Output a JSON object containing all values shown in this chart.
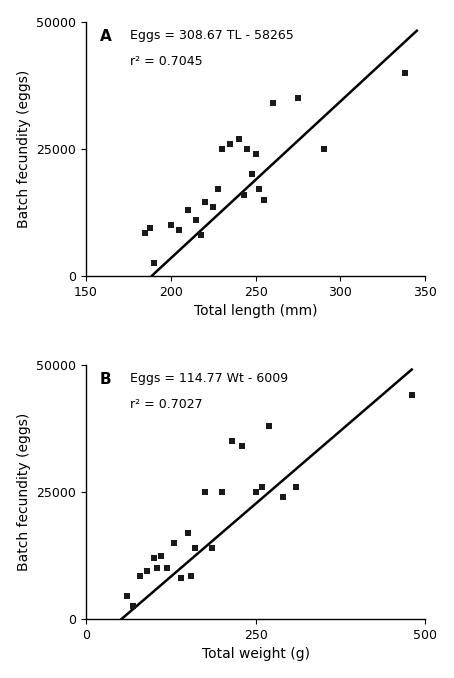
{
  "panel_A": {
    "label": "A",
    "equation": "Eggs = 308.67 TL - 58265",
    "r2": "r² = 0.7045",
    "slope": 308.67,
    "intercept": -58265,
    "x_data": [
      185,
      188,
      190,
      200,
      205,
      210,
      215,
      218,
      220,
      225,
      228,
      230,
      235,
      240,
      243,
      245,
      248,
      250,
      252,
      255,
      260,
      275,
      290,
      338
    ],
    "y_data": [
      8500,
      9500,
      2500,
      10000,
      9000,
      13000,
      11000,
      8000,
      14500,
      13500,
      17000,
      25000,
      26000,
      27000,
      16000,
      25000,
      20000,
      24000,
      17000,
      15000,
      34000,
      35000,
      25000,
      40000
    ],
    "line_xmin": 189,
    "line_xmax": 345,
    "xlabel": "Total length (mm)",
    "ylabel": "Batch fecundity (eggs)",
    "xlim": [
      150,
      350
    ],
    "ylim": [
      0,
      50000
    ],
    "xticks": [
      150,
      200,
      250,
      300,
      350
    ],
    "yticks": [
      0,
      25000,
      50000
    ]
  },
  "panel_B": {
    "label": "B",
    "equation": "Eggs = 114.77 Wt - 6009",
    "r2": "r² = 0.7027",
    "slope": 114.77,
    "intercept": -6009,
    "x_data": [
      60,
      70,
      80,
      90,
      100,
      105,
      110,
      120,
      130,
      140,
      150,
      155,
      160,
      175,
      185,
      200,
      215,
      230,
      250,
      260,
      270,
      290,
      310,
      480
    ],
    "y_data": [
      4500,
      2500,
      8500,
      9500,
      12000,
      10000,
      12500,
      10000,
      15000,
      8000,
      17000,
      8500,
      14000,
      25000,
      14000,
      25000,
      35000,
      34000,
      25000,
      26000,
      38000,
      24000,
      26000,
      44000
    ],
    "line_xmin": 52,
    "line_xmax": 480,
    "xlabel": "Total weight (g)",
    "ylabel": "Batch fecundity (eggs)",
    "xlim": [
      0,
      500
    ],
    "ylim": [
      0,
      50000
    ],
    "xticks": [
      0,
      250,
      500
    ],
    "yticks": [
      0,
      25000,
      50000
    ]
  },
  "marker_color": "#1a1a1a",
  "line_color": "#000000",
  "marker_size": 16,
  "line_width": 1.8,
  "annotation_fontsize": 9,
  "label_fontsize": 10,
  "tick_fontsize": 9,
  "font_family": "DejaVu Sans"
}
